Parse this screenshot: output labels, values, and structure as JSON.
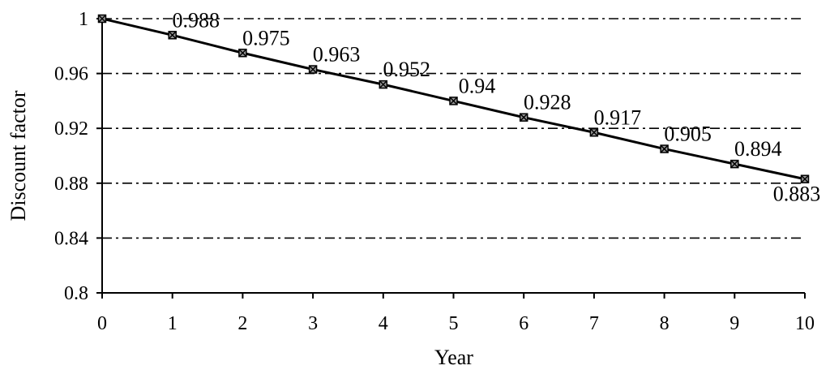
{
  "chart_data": {
    "type": "line",
    "title": "",
    "xlabel": "Year",
    "ylabel": "Discount factor",
    "x": [
      0,
      1,
      2,
      3,
      4,
      5,
      6,
      7,
      8,
      9,
      10
    ],
    "series": [
      {
        "values": [
          1,
          0.988,
          0.975,
          0.963,
          0.952,
          0.94,
          0.928,
          0.917,
          0.905,
          0.894,
          0.883
        ],
        "data_labels": [
          "",
          "0.988",
          "0.975",
          "0.963",
          "0.952",
          "0.94",
          "0.928",
          "0.917",
          "0.905",
          "0.894",
          "0.883"
        ],
        "color": "#000000",
        "marker": "x-square"
      }
    ],
    "xlim": [
      0,
      10
    ],
    "ylim": [
      0.8,
      1
    ],
    "x_ticks": [
      "0",
      "1",
      "2",
      "3",
      "4",
      "5",
      "6",
      "7",
      "8",
      "9",
      "10"
    ],
    "y_ticks": [
      "0.8",
      "0.84",
      "0.88",
      "0.92",
      "0.96",
      "1"
    ],
    "grid": "horizontal dash-dot",
    "legend": "none"
  }
}
